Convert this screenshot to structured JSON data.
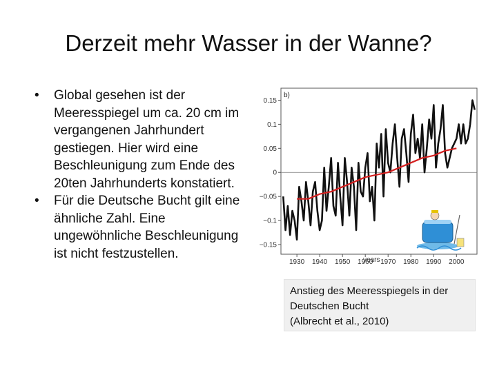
{
  "slide": {
    "title": "Derzeit mehr Wasser in der Wanne?",
    "bullets": [
      "Global gesehen ist der Meeresspiegel um ca. 20 cm im vergangenen Jahrhundert gestiegen. Hier wird eine Beschleunigung zum Ende des 20ten Jahrhunderts konstatiert.",
      "Für die Deutsche Bucht gilt eine ähnliche Zahl. Eine ungewöhnliche Beschleunigung ist nicht festzustellen."
    ],
    "bullet_symbol": "•",
    "caption": {
      "line1": "Anstieg des Meeresspiegels in der",
      "line2": "Deutschen Bucht",
      "line3": "(Albrecht et al., 2010)"
    }
  },
  "chart_data": {
    "type": "line",
    "panel_label": "b)",
    "xlabel": "years",
    "ylabel": "",
    "xlim": [
      1923,
      2009
    ],
    "ylim": [
      -0.17,
      0.175
    ],
    "x_ticks": [
      1930,
      1940,
      1950,
      1960,
      1970,
      1980,
      1990,
      2000
    ],
    "y_ticks": [
      0.15,
      0.1,
      0.05,
      0,
      -0.05,
      -0.1,
      -0.15
    ],
    "y_tick_labels": [
      "0.15",
      "0.1",
      "0.05",
      "0",
      "−0.05",
      "−0.1",
      "−0.15"
    ],
    "zero_line": true,
    "series": [
      {
        "color": "#111111",
        "x": [
          1924,
          1925,
          1926,
          1927,
          1928,
          1929,
          1930,
          1931,
          1932,
          1933,
          1934,
          1935,
          1936,
          1937,
          1938,
          1939,
          1940,
          1941,
          1942,
          1943,
          1944,
          1945,
          1946,
          1947,
          1948,
          1949,
          1950,
          1951,
          1952,
          1953,
          1954,
          1955,
          1956,
          1957,
          1958,
          1959,
          1960,
          1961,
          1962,
          1963,
          1964,
          1965,
          1966,
          1967,
          1968,
          1969,
          1970,
          1971,
          1972,
          1973,
          1974,
          1975,
          1976,
          1977,
          1978,
          1979,
          1980,
          1981,
          1982,
          1983,
          1984,
          1985,
          1986,
          1987,
          1988,
          1989,
          1990,
          1991,
          1992,
          1993,
          1994,
          1995,
          1996,
          1997,
          1998,
          1999,
          2000,
          2001,
          2002,
          2003,
          2004,
          2005,
          2006,
          2007,
          2008
        ],
        "y": [
          -0.05,
          -0.12,
          -0.07,
          -0.13,
          -0.08,
          -0.1,
          -0.14,
          -0.03,
          -0.06,
          -0.1,
          -0.02,
          -0.06,
          -0.11,
          -0.04,
          -0.02,
          -0.08,
          -0.12,
          -0.1,
          0.01,
          -0.08,
          -0.03,
          0.03,
          -0.07,
          -0.09,
          0.02,
          -0.05,
          -0.11,
          0.03,
          -0.02,
          -0.09,
          0.01,
          -0.03,
          -0.12,
          0.02,
          -0.04,
          -0.05,
          0.01,
          0.04,
          -0.06,
          -0.03,
          -0.1,
          0.06,
          0.01,
          0.08,
          -0.05,
          0.09,
          0.02,
          0.0,
          0.06,
          0.1,
          0.03,
          -0.03,
          0.07,
          0.09,
          0.04,
          -0.02,
          0.08,
          0.12,
          0.04,
          0.07,
          0.03,
          0.1,
          0.0,
          0.05,
          0.11,
          0.07,
          0.14,
          0.01,
          0.06,
          0.09,
          0.14,
          0.04,
          0.01,
          0.03,
          0.05,
          0.06,
          0.07,
          0.1,
          0.06,
          0.1,
          0.06,
          0.07,
          0.1,
          0.15,
          0.13
        ]
      },
      {
        "color": "#d42020",
        "x": [
          1930,
          1935,
          1940,
          1945,
          1950,
          1955,
          1960,
          1965,
          1970,
          1975,
          1980,
          1985,
          1990,
          1995,
          2000
        ],
        "y": [
          -0.055,
          -0.055,
          -0.045,
          -0.04,
          -0.03,
          -0.02,
          -0.01,
          -0.005,
          0.0,
          0.01,
          0.02,
          0.03,
          0.035,
          0.045,
          0.05
        ]
      }
    ]
  }
}
